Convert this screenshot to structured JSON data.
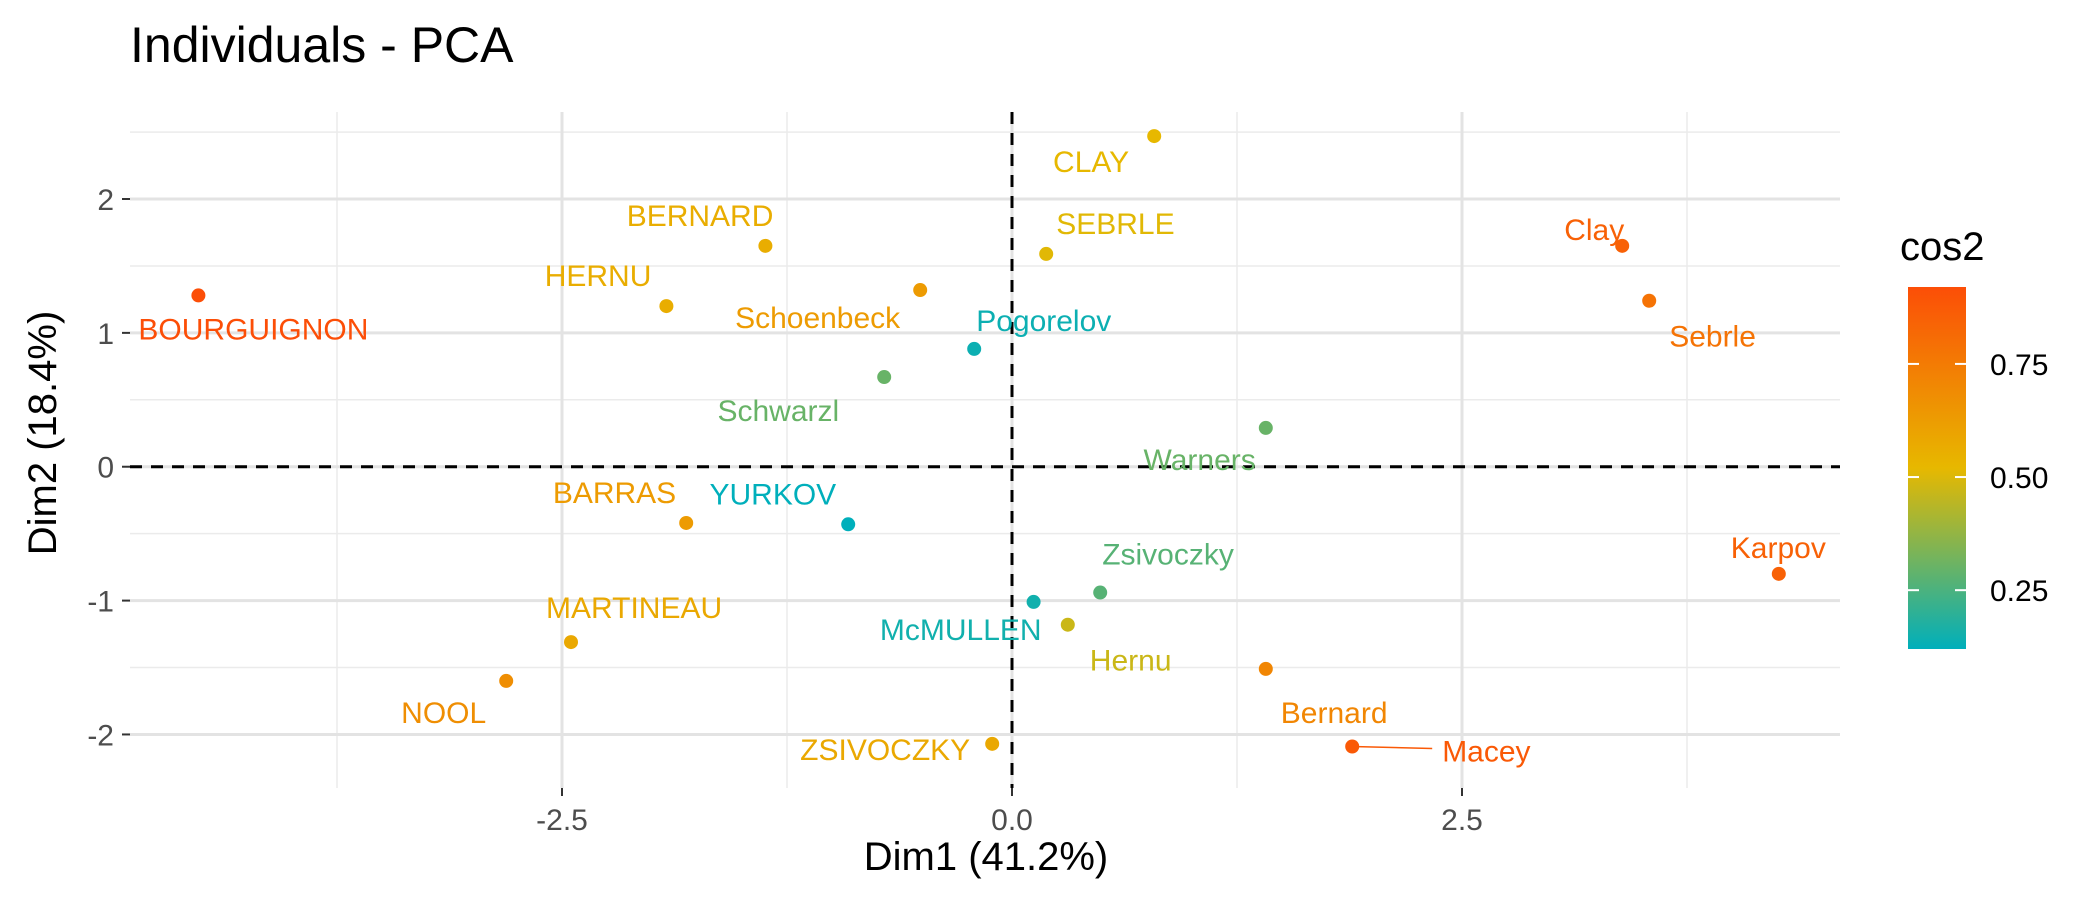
{
  "chart_data": {
    "type": "scatter",
    "title": "Individuals - PCA",
    "xlabel": "Dim1 (41.2%)",
    "ylabel": "Dim2 (18.4%)",
    "xlim": [
      -4.9,
      4.6
    ],
    "ylim": [
      -2.4,
      2.65
    ],
    "x_ticks": [
      -2.5,
      0.0,
      2.5
    ],
    "x_tick_labels": [
      "-2.5",
      "0.0",
      "2.5"
    ],
    "y_ticks": [
      -2,
      -1,
      0,
      1,
      2
    ],
    "y_tick_labels": [
      "-2",
      "-1",
      "0",
      "1",
      "2"
    ],
    "grid": true,
    "reference_lines": {
      "x": 0,
      "y": 0,
      "style": "dashed"
    },
    "legend": {
      "title": "cos2",
      "position": "right",
      "ticks": [
        0.25,
        0.5,
        0.75
      ],
      "tick_labels": [
        "0.25",
        "0.50",
        "0.75"
      ],
      "range": [
        0.12,
        0.92
      ],
      "colors": [
        "#00AFBB",
        "#E7B800",
        "#FC4E07"
      ]
    },
    "points": [
      {
        "label": "SEBRLE",
        "x": 0.19,
        "y": 1.59,
        "cos2": 0.51
      },
      {
        "label": "CLAY",
        "x": 0.79,
        "y": 2.47,
        "cos2": 0.52
      },
      {
        "label": "BERNARD",
        "x": -1.37,
        "y": 1.65,
        "cos2": 0.56
      },
      {
        "label": "YURKOV",
        "x": -0.91,
        "y": -0.43,
        "cos2": 0.12
      },
      {
        "label": "ZSIVOCZKY",
        "x": -0.11,
        "y": -2.07,
        "cos2": 0.58
      },
      {
        "label": "McMULLEN",
        "x": 0.12,
        "y": -1.01,
        "cos2": 0.15
      },
      {
        "label": "MARTINEAU",
        "x": -2.45,
        "y": -1.31,
        "cos2": 0.58
      },
      {
        "label": "HERNU",
        "x": -1.92,
        "y": 1.2,
        "cos2": 0.56
      },
      {
        "label": "BARRAS",
        "x": -1.81,
        "y": -0.42,
        "cos2": 0.63
      },
      {
        "label": "NOOL",
        "x": -2.81,
        "y": -1.6,
        "cos2": 0.68
      },
      {
        "label": "BOURGUIGNON",
        "x": -4.52,
        "y": 1.28,
        "cos2": 0.92
      },
      {
        "label": "Sebrle",
        "x": 3.54,
        "y": 1.24,
        "cos2": 0.78
      },
      {
        "label": "Clay",
        "x": 3.39,
        "y": 1.65,
        "cos2": 0.85
      },
      {
        "label": "Karpov",
        "x": 4.26,
        "y": -0.8,
        "cos2": 0.85
      },
      {
        "label": "Macey",
        "x": 1.89,
        "y": -2.09,
        "cos2": 0.88
      },
      {
        "label": "Warners",
        "x": 1.41,
        "y": 0.29,
        "cos2": 0.3
      },
      {
        "label": "Zsivoczky",
        "x": 0.49,
        "y": -0.94,
        "cos2": 0.27
      },
      {
        "label": "Hernu",
        "x": 0.31,
        "y": -1.18,
        "cos2": 0.47
      },
      {
        "label": "Bernard",
        "x": 1.41,
        "y": -1.51,
        "cos2": 0.71
      },
      {
        "label": "Schwarzl",
        "x": -0.71,
        "y": 0.67,
        "cos2": 0.3
      },
      {
        "label": "Pogorelov",
        "x": -0.21,
        "y": 0.88,
        "cos2": 0.14
      },
      {
        "label": "Schoenbeck",
        "x": -0.51,
        "y": 1.32,
        "cos2": 0.63
      }
    ]
  }
}
